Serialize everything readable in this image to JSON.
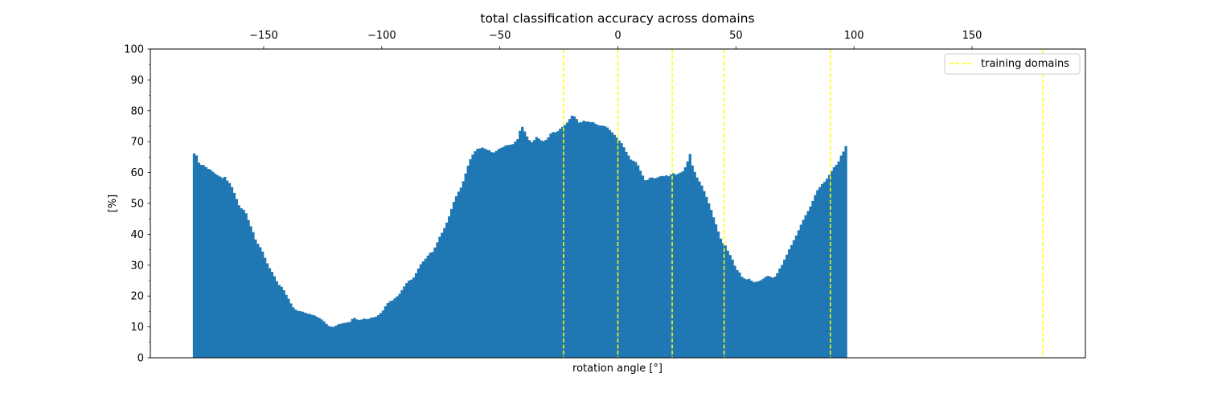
{
  "chart_data": {
    "type": "bar",
    "title": "total classification accuracy across domains",
    "xlabel": "rotation angle [°]",
    "ylabel": "[%]",
    "ylim": [
      0,
      100
    ],
    "xlim": [
      -198,
      198
    ],
    "x_ticks_top": [
      -150,
      -100,
      -50,
      0,
      50,
      100,
      150
    ],
    "y_ticks": [
      0,
      10,
      20,
      30,
      40,
      50,
      60,
      70,
      80,
      90,
      100
    ],
    "grid": false,
    "bar_color": "#1f77b4",
    "bar_start": -180,
    "bar_step": 1,
    "values": [
      66.2,
      65.5,
      63.2,
      62.5,
      62.4,
      61.8,
      61.2,
      60.9,
      60.2,
      59.6,
      59.1,
      58.7,
      58.2,
      58.6,
      57.4,
      56.6,
      55.3,
      53.4,
      51.4,
      49.4,
      48.4,
      47.9,
      46.8,
      44.6,
      42.6,
      40.7,
      38.3,
      36.9,
      35.8,
      34.4,
      32.4,
      30.6,
      29.0,
      27.8,
      26.4,
      24.8,
      23.6,
      23.0,
      21.9,
      20.4,
      19.1,
      17.6,
      16.3,
      15.6,
      15.2,
      15.1,
      14.9,
      14.6,
      14.3,
      14.2,
      13.9,
      13.7,
      13.3,
      12.9,
      12.4,
      11.8,
      11.0,
      10.3,
      10.1,
      10.0,
      10.4,
      10.8,
      11.0,
      11.2,
      11.3,
      11.5,
      11.6,
      12.6,
      12.9,
      12.4,
      12.2,
      12.4,
      12.7,
      12.5,
      12.6,
      13.0,
      13.1,
      13.3,
      13.8,
      14.5,
      15.3,
      16.7,
      17.7,
      18.3,
      18.6,
      19.3,
      19.9,
      20.7,
      21.9,
      23.1,
      24.2,
      25.0,
      25.3,
      26.0,
      27.4,
      28.9,
      30.3,
      31.2,
      32.1,
      33.1,
      34.0,
      34.3,
      35.7,
      37.4,
      39.2,
      40.5,
      42.0,
      43.8,
      45.8,
      48.2,
      50.5,
      52.3,
      53.8,
      55.1,
      57.2,
      59.7,
      62.2,
      64.3,
      65.8,
      66.9,
      67.7,
      67.8,
      68.1,
      67.8,
      67.4,
      67.2,
      66.6,
      66.5,
      67.0,
      67.6,
      68.0,
      68.3,
      68.8,
      68.9,
      69.0,
      69.2,
      70.0,
      70.8,
      73.5,
      74.8,
      73.3,
      71.7,
      70.5,
      69.8,
      70.5,
      71.5,
      71.0,
      70.4,
      70.2,
      70.6,
      71.4,
      72.6,
      73.1,
      73.0,
      73.4,
      74.2,
      74.8,
      75.4,
      76.2,
      77.3,
      78.4,
      78.2,
      77.3,
      76.2,
      76.3,
      76.8,
      76.5,
      76.5,
      76.3,
      76.3,
      75.8,
      75.4,
      75.2,
      75.2,
      75.0,
      74.6,
      73.8,
      73.0,
      72.2,
      71.3,
      70.4,
      69.5,
      68.2,
      66.7,
      65.5,
      64.2,
      63.8,
      63.4,
      62.3,
      60.6,
      59.0,
      57.5,
      57.6,
      58.3,
      58.4,
      58.1,
      58.3,
      58.7,
      58.9,
      58.8,
      59.1,
      58.8,
      59.4,
      59.8,
      59.3,
      59.6,
      60.0,
      60.4,
      61.7,
      63.6,
      66.0,
      62.3,
      60.2,
      58.4,
      57.1,
      55.8,
      54.0,
      52.1,
      50.0,
      47.9,
      45.5,
      43.2,
      40.9,
      38.6,
      37.1,
      36.4,
      34.7,
      33.3,
      31.8,
      29.8,
      28.4,
      27.6,
      26.2,
      25.7,
      25.4,
      25.6,
      25.0,
      24.5,
      24.6,
      24.8,
      25.1,
      25.6,
      26.2,
      26.5,
      26.3,
      25.9,
      26.3,
      27.4,
      28.9,
      30.1,
      31.8,
      33.4,
      35.1,
      36.5,
      38.1,
      39.6,
      41.3,
      43.1,
      44.7,
      46.2,
      47.5,
      49.0,
      50.8,
      52.7,
      54.3,
      55.3,
      56.3,
      57.0,
      58.0,
      59.2,
      60.5,
      61.7,
      62.5,
      63.6,
      65.5,
      66.8,
      68.6
    ],
    "vlines": [
      -23,
      0,
      23,
      45,
      90,
      180
    ],
    "vline_color": "#ffff00",
    "legend": {
      "label": "training domains",
      "position": "top-right"
    }
  }
}
